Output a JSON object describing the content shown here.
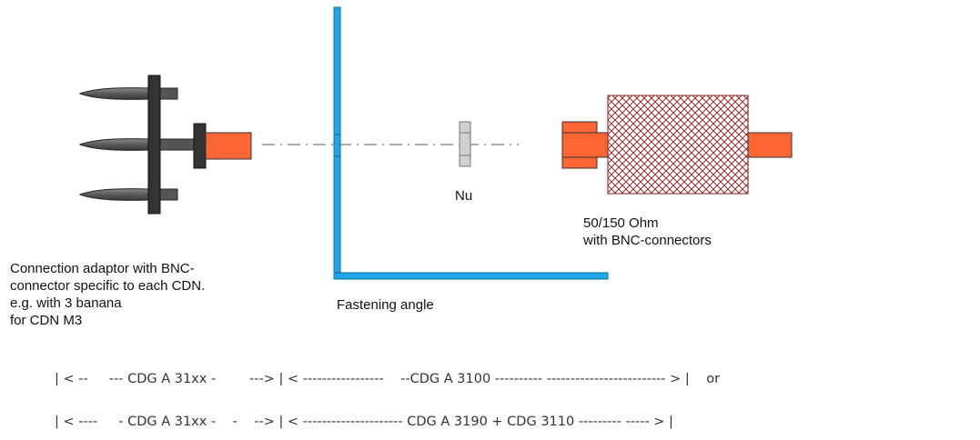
{
  "labels": {
    "nut": "Nu",
    "resistor_line1": "50/150 Ohm",
    "resistor_line2": "with BNC-connectors",
    "adaptor_line1": "Connection adaptor with BNC-",
    "adaptor_line2": "connector specific to each CDN.",
    "adaptor_line3": "e.g. with 3 banana",
    "adaptor_line4": "for CDN M3",
    "fastening_angle": "Fastening angle"
  },
  "dimension_lines": {
    "row1": "| < --     --- CDG A 31xx -        ---> | < -----------------    --CDG A 3100 ---------- ------------------------- > |    or",
    "row2": "| < ----     - CDG A 31xx -    -    --> | < --------------------- CDG A 3190 + CDG 3110 --------- ----- > |"
  },
  "colors": {
    "connector_orange": "#ff6633",
    "angle_blue": "#1ea7e8",
    "adaptor_dark": "#333333",
    "resistor_hatch": "#9b2c2c",
    "nut_gray": "#cccccc"
  }
}
